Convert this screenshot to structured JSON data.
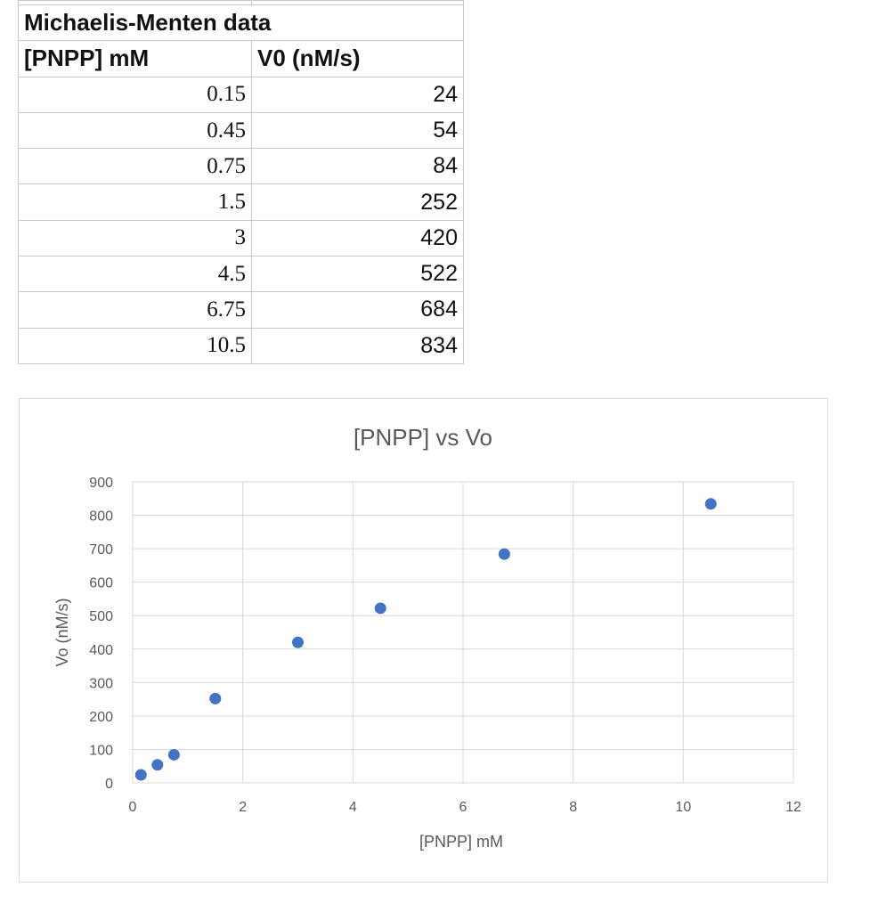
{
  "table": {
    "title": "Michaelis-Menten data",
    "headers": [
      "[PNPP] mM",
      "V0 (nM/s)"
    ],
    "rows": [
      [
        "0.15",
        "24"
      ],
      [
        "0.45",
        "54"
      ],
      [
        "0.75",
        "84"
      ],
      [
        "1.5",
        "252"
      ],
      [
        "3",
        "420"
      ],
      [
        "4.5",
        "522"
      ],
      [
        "6.75",
        "684"
      ],
      [
        "10.5",
        "834"
      ]
    ]
  },
  "chart_data": {
    "type": "scatter",
    "title": "[PNPP] vs Vo",
    "xlabel": "[PNPP] mM",
    "ylabel": "Vo (nM/s)",
    "xlim": [
      0,
      12
    ],
    "ylim": [
      0,
      900
    ],
    "xticks": [
      0,
      2,
      4,
      6,
      8,
      10,
      12
    ],
    "yticks": [
      0,
      100,
      200,
      300,
      400,
      500,
      600,
      700,
      800,
      900
    ],
    "grid": true,
    "legend": "none",
    "marker_color": "#4472c4",
    "points": [
      {
        "x": 0.15,
        "y": 24
      },
      {
        "x": 0.45,
        "y": 54
      },
      {
        "x": 0.75,
        "y": 84
      },
      {
        "x": 1.5,
        "y": 252
      },
      {
        "x": 3,
        "y": 420
      },
      {
        "x": 4.5,
        "y": 522
      },
      {
        "x": 6.75,
        "y": 684
      },
      {
        "x": 10.5,
        "y": 834
      }
    ]
  }
}
